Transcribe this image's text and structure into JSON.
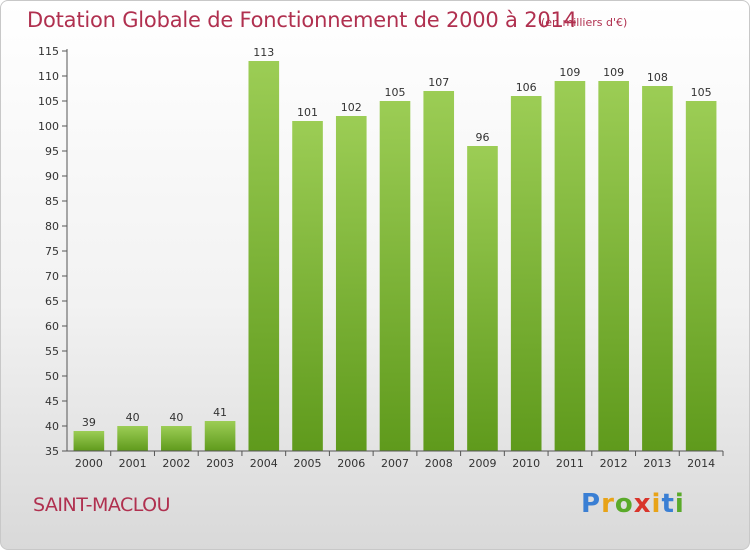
{
  "title": "Dotation Globale de Fonctionnement de 2000 à 2014",
  "unit_note": "(en milliers d'€)",
  "commune": "SAINT-MACLOU",
  "logo": {
    "letters": [
      "P",
      "r",
      "o",
      "x",
      "i",
      "t",
      "i"
    ],
    "colors": [
      "#3a7fd4",
      "#e8a317",
      "#5aaa2a",
      "#d9342b",
      "#e8a317",
      "#3a7fd4",
      "#5aaa2a"
    ]
  },
  "colors": {
    "bar": "#7db533",
    "title": "#b0304f"
  },
  "chart_data": {
    "type": "bar",
    "title": "Dotation Globale de Fonctionnement de 2000 à 2014",
    "xlabel": "",
    "ylabel": "",
    "categories": [
      "2000",
      "2001",
      "2002",
      "2003",
      "2004",
      "2005",
      "2006",
      "2007",
      "2008",
      "2009",
      "2010",
      "2011",
      "2012",
      "2013",
      "2014"
    ],
    "values": [
      39,
      40,
      40,
      41,
      113,
      101,
      102,
      105,
      107,
      96,
      106,
      109,
      109,
      108,
      105
    ],
    "ylim": [
      35,
      115
    ],
    "yticks": [
      35,
      40,
      45,
      50,
      55,
      60,
      65,
      70,
      75,
      80,
      85,
      90,
      95,
      100,
      105,
      110,
      115
    ],
    "grid": false,
    "data_labels": true
  }
}
